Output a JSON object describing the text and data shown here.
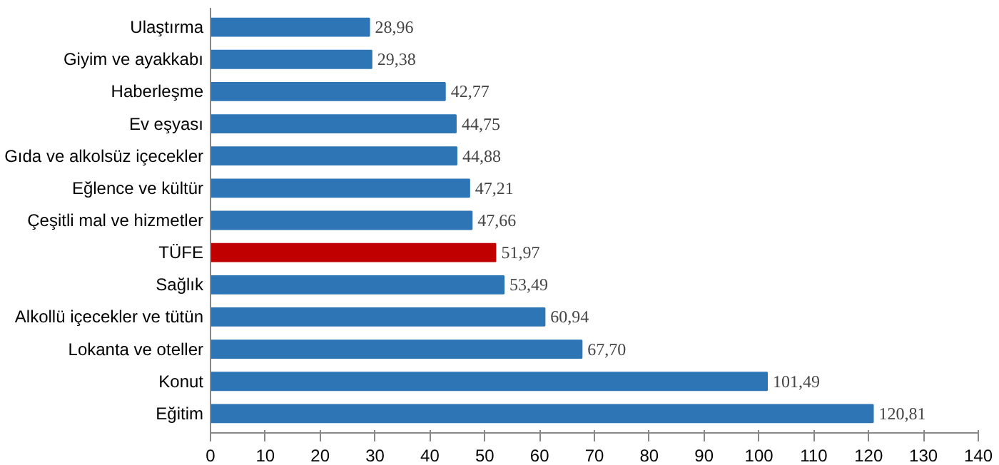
{
  "chart_data": {
    "type": "bar",
    "orientation": "horizontal",
    "categories": [
      "Ulaştırma",
      "Giyim ve ayakkabı",
      "Haberleşme",
      "Ev eşyası",
      "Gıda ve alkolsüz içecekler",
      "Eğlence ve kültür",
      "Çeşitli mal ve hizmetler",
      "TÜFE",
      "Sağlık",
      "Alkollü içecekler ve tütün",
      "Lokanta ve oteller",
      "Konut",
      "Eğitim"
    ],
    "values": [
      28.96,
      29.38,
      42.77,
      44.75,
      44.88,
      47.21,
      47.66,
      51.97,
      53.49,
      60.94,
      67.7,
      101.49,
      120.81
    ],
    "colors": [
      "#2e75b6",
      "#2e75b6",
      "#2e75b6",
      "#2e75b6",
      "#2e75b6",
      "#2e75b6",
      "#2e75b6",
      "#c00000",
      "#2e75b6",
      "#2e75b6",
      "#2e75b6",
      "#2e75b6",
      "#2e75b6"
    ],
    "value_labels": [
      "28,96",
      "29,38",
      "42,77",
      "44,75",
      "44,88",
      "47,21",
      "47,66",
      "51,97",
      "53,49",
      "60,94",
      "67,70",
      "101,49",
      "120,81"
    ],
    "xlim": [
      0,
      140
    ],
    "xticks": [
      0,
      10,
      20,
      30,
      40,
      50,
      60,
      70,
      80,
      90,
      100,
      110,
      120,
      130,
      140
    ],
    "grid": false
  }
}
